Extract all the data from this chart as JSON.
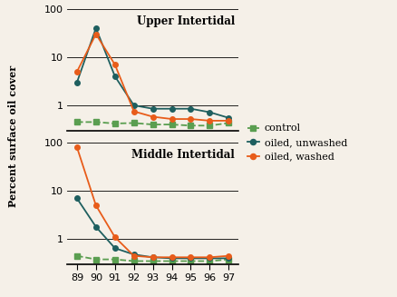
{
  "years": [
    89,
    90,
    91,
    92,
    93,
    94,
    95,
    96,
    97
  ],
  "upper_control": [
    0.45,
    0.45,
    0.42,
    0.43,
    0.4,
    0.4,
    0.38,
    0.38,
    0.43
  ],
  "upper_unwashed": [
    3.0,
    40.0,
    4.0,
    1.0,
    0.85,
    0.85,
    0.85,
    0.72,
    0.55
  ],
  "upper_washed": [
    5.0,
    30.0,
    7.0,
    0.75,
    0.58,
    0.52,
    0.52,
    0.48,
    0.48
  ],
  "middle_control": [
    0.45,
    0.38,
    0.38,
    0.35,
    0.35,
    0.35,
    0.35,
    0.35,
    0.38
  ],
  "middle_unwashed": [
    7.0,
    1.8,
    0.65,
    0.48,
    0.42,
    0.4,
    0.4,
    0.4,
    0.4
  ],
  "middle_washed": [
    80.0,
    5.0,
    1.1,
    0.45,
    0.42,
    0.42,
    0.42,
    0.42,
    0.45
  ],
  "color_control": "#5a9e50",
  "color_unwashed": "#1e5f5f",
  "color_washed": "#e85c1a",
  "title_upper": "Upper Intertidal",
  "title_middle": "Middle Intertidal",
  "ylabel": "Percent surface oil cover",
  "legend_labels": [
    "control",
    "oiled, unwashed",
    "oiled, washed"
  ],
  "bg_color": "#f5f0e8"
}
